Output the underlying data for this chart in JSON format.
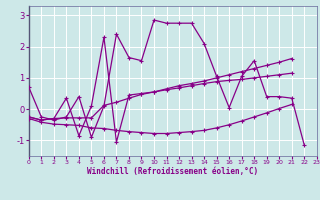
{
  "xlabel": "Windchill (Refroidissement éolien,°C)",
  "background_color": "#cde8e8",
  "grid_color": "#ffffff",
  "line_color": "#880088",
  "spine_color": "#666699",
  "xlim": [
    0,
    23
  ],
  "ylim": [
    -1.5,
    3.3
  ],
  "yticks": [
    -1,
    0,
    1,
    2,
    3
  ],
  "xticks": [
    0,
    1,
    2,
    3,
    4,
    5,
    6,
    7,
    8,
    9,
    10,
    11,
    12,
    13,
    14,
    15,
    16,
    17,
    18,
    19,
    20,
    21,
    22,
    23
  ],
  "series": [
    {
      "x": [
        0,
        1,
        2,
        3,
        4,
        5,
        6,
        7,
        8,
        9,
        10,
        11,
        12,
        13,
        14,
        15,
        16,
        17,
        18,
        19,
        20,
        21,
        22
      ],
      "y": [
        0.7,
        -0.25,
        -0.35,
        -0.25,
        0.4,
        -0.9,
        0.1,
        2.4,
        1.65,
        1.55,
        2.85,
        2.75,
        2.75,
        2.75,
        2.1,
        1.05,
        0.05,
        1.05,
        1.55,
        0.4,
        0.4,
        0.35,
        -1.15
      ]
    },
    {
      "x": [
        0,
        1,
        2,
        3,
        4,
        5,
        6,
        7,
        8,
        9,
        10,
        11,
        12,
        13,
        14,
        15,
        16,
        17,
        18,
        19,
        20,
        21
      ],
      "y": [
        -0.25,
        -0.35,
        -0.3,
        0.35,
        -0.85,
        0.1,
        2.3,
        -1.05,
        0.45,
        0.5,
        0.55,
        0.62,
        0.68,
        0.75,
        0.82,
        0.88,
        0.92,
        0.95,
        1.0,
        1.05,
        1.1,
        1.15
      ]
    },
    {
      "x": [
        0,
        1,
        2,
        3,
        4,
        5,
        6,
        7,
        8,
        9,
        10,
        11,
        12,
        13,
        14,
        15,
        16,
        17,
        18,
        19,
        20,
        21
      ],
      "y": [
        -0.25,
        -0.35,
        -0.3,
        -0.28,
        -0.28,
        -0.28,
        0.12,
        0.22,
        0.35,
        0.47,
        0.55,
        0.65,
        0.75,
        0.82,
        0.9,
        1.0,
        1.1,
        1.2,
        1.3,
        1.4,
        1.5,
        1.62
      ]
    },
    {
      "x": [
        0,
        1,
        2,
        3,
        4,
        5,
        6,
        7,
        8,
        9,
        10,
        11,
        12,
        13,
        14,
        15,
        16,
        17,
        18,
        19,
        20,
        21
      ],
      "y": [
        -0.3,
        -0.42,
        -0.48,
        -0.5,
        -0.52,
        -0.6,
        -0.62,
        -0.68,
        -0.72,
        -0.75,
        -0.78,
        -0.78,
        -0.75,
        -0.72,
        -0.68,
        -0.6,
        -0.5,
        -0.38,
        -0.25,
        -0.12,
        0.02,
        0.15
      ]
    }
  ]
}
